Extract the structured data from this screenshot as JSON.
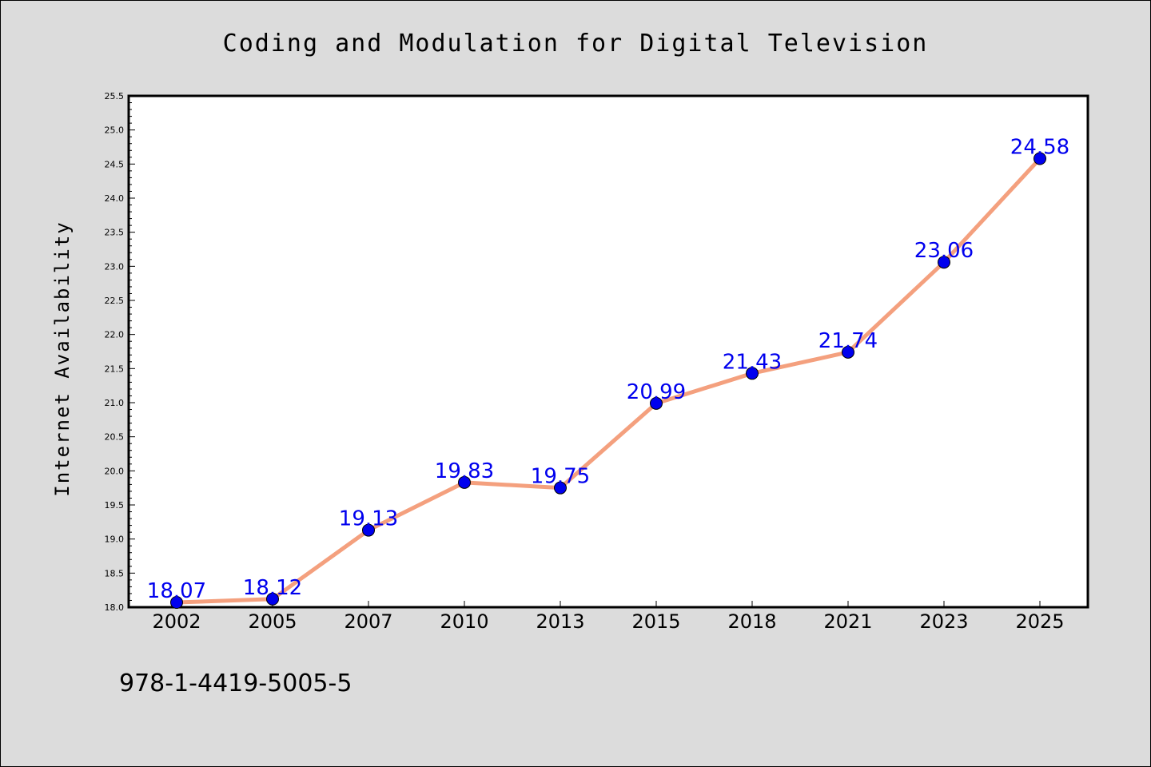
{
  "chart_data": {
    "type": "line",
    "title": "Coding and Modulation for Digital Television",
    "xlabel": "",
    "ylabel": "Internet Availability",
    "categories": [
      "2002",
      "2005",
      "2007",
      "2010",
      "2013",
      "2015",
      "2018",
      "2021",
      "2023",
      "2025"
    ],
    "series": [
      {
        "values": [
          18.07,
          18.12,
          19.13,
          19.83,
          19.75,
          20.99,
          21.43,
          21.74,
          23.06,
          24.58
        ],
        "data_labels": [
          "18.07",
          "18.12",
          "19.13",
          "19.83",
          "19.75",
          "20.99",
          "21.43",
          "21.74",
          "23.06",
          "24.58"
        ]
      }
    ],
    "ylim": [
      18.0,
      25.5
    ],
    "yticks": [
      "18.0",
      "18.5",
      "19.0",
      "19.5",
      "20.0",
      "20.5",
      "21.0",
      "21.5",
      "22.0",
      "22.5",
      "23.0",
      "23.5",
      "24.0",
      "24.5",
      "25.0",
      "25.5"
    ],
    "grid": false,
    "legend": "none",
    "colors": {
      "line": "#f4a07e",
      "marker": "#0000ee",
      "label": "#0000ee",
      "background": "#dcdcdc",
      "plot_area": "#ffffff"
    }
  },
  "footer": {
    "isbn": "978-1-4419-5005-5"
  }
}
